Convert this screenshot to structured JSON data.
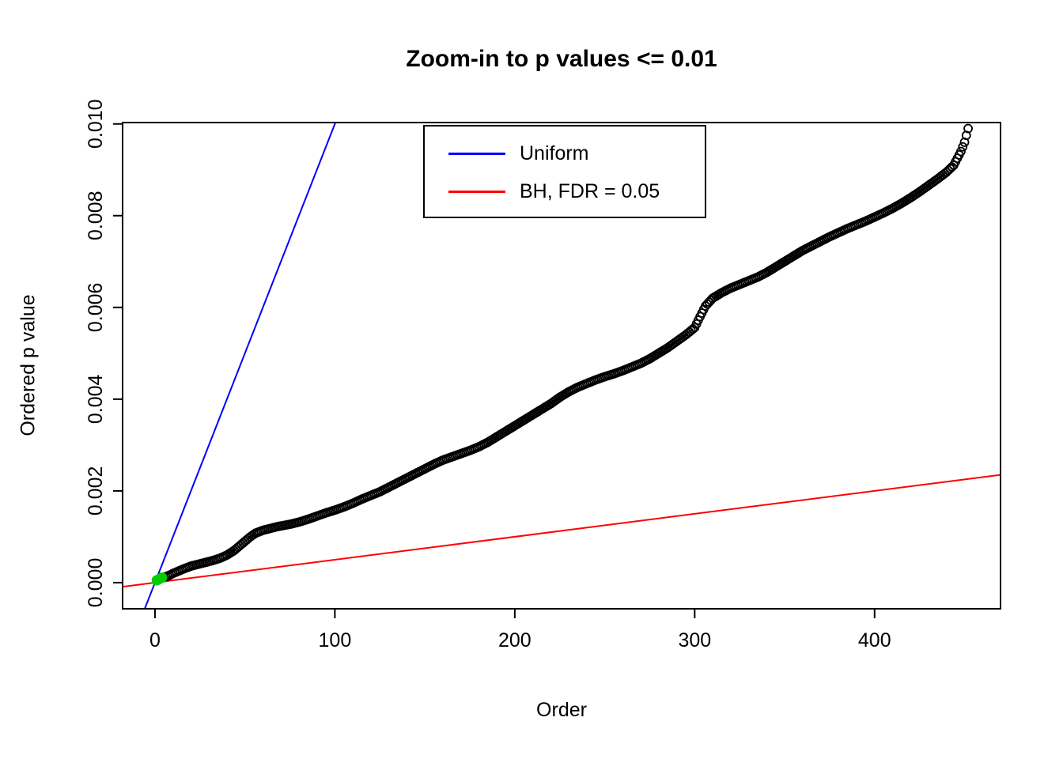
{
  "chart_data": {
    "type": "scatter",
    "title": "Zoom-in to p values <= 0.01",
    "xlabel": "Order",
    "ylabel": "Ordered p value",
    "xlim": [
      -18,
      470
    ],
    "ylim": [
      -0.00057,
      0.01003
    ],
    "grid": false,
    "x_ticks": {
      "values": [
        0,
        100,
        200,
        300,
        400
      ],
      "labels": [
        "0",
        "100",
        "200",
        "300",
        "400"
      ]
    },
    "y_ticks": {
      "values": [
        0,
        0.002,
        0.004,
        0.006,
        0.008,
        0.01
      ],
      "labels": [
        "0.000",
        "0.002",
        "0.004",
        "0.006",
        "0.008",
        "0.010"
      ]
    },
    "legend": {
      "position": "top-center-inside",
      "entries": [
        {
          "label": "Uniform",
          "color": "#0000FF"
        },
        {
          "label": "BH, FDR = 0.05",
          "color": "#FF0000"
        }
      ]
    },
    "series": [
      {
        "name": "ordered-p-values",
        "kind": "points",
        "marker": "open-circle",
        "color": "#000000",
        "n_points": 452,
        "x_is_rank": true,
        "curve_control_points": [
          [
            1,
            6e-05
          ],
          [
            2,
            8e-05
          ],
          [
            4,
            0.0001
          ],
          [
            6,
            0.00013
          ],
          [
            8,
            0.00016
          ],
          [
            10,
            0.0002
          ],
          [
            13,
            0.00025
          ],
          [
            16,
            0.0003
          ],
          [
            20,
            0.00036
          ],
          [
            24,
            0.0004
          ],
          [
            28,
            0.00044
          ],
          [
            32,
            0.00048
          ],
          [
            36,
            0.00053
          ],
          [
            40,
            0.0006
          ],
          [
            44,
            0.0007
          ],
          [
            47,
            0.0008
          ],
          [
            50,
            0.0009
          ],
          [
            53,
            0.001
          ],
          [
            56,
            0.00108
          ],
          [
            60,
            0.00114
          ],
          [
            64,
            0.00118
          ],
          [
            68,
            0.00122
          ],
          [
            72,
            0.00125
          ],
          [
            76,
            0.00128
          ],
          [
            80,
            0.00132
          ],
          [
            85,
            0.00138
          ],
          [
            90,
            0.00145
          ],
          [
            95,
            0.00152
          ],
          [
            100,
            0.00158
          ],
          [
            105,
            0.00165
          ],
          [
            110,
            0.00173
          ],
          [
            115,
            0.00182
          ],
          [
            120,
            0.0019
          ],
          [
            125,
            0.00198
          ],
          [
            130,
            0.00208
          ],
          [
            135,
            0.00218
          ],
          [
            140,
            0.00228
          ],
          [
            145,
            0.00238
          ],
          [
            150,
            0.00248
          ],
          [
            155,
            0.00258
          ],
          [
            160,
            0.00267
          ],
          [
            165,
            0.00274
          ],
          [
            170,
            0.00281
          ],
          [
            175,
            0.00288
          ],
          [
            180,
            0.00296
          ],
          [
            185,
            0.00306
          ],
          [
            190,
            0.00318
          ],
          [
            195,
            0.0033
          ],
          [
            200,
            0.00342
          ],
          [
            205,
            0.00354
          ],
          [
            210,
            0.00366
          ],
          [
            215,
            0.00378
          ],
          [
            220,
            0.0039
          ],
          [
            225,
            0.00404
          ],
          [
            230,
            0.00416
          ],
          [
            235,
            0.00426
          ],
          [
            240,
            0.00434
          ],
          [
            245,
            0.00442
          ],
          [
            250,
            0.00449
          ],
          [
            255,
            0.00455
          ],
          [
            260,
            0.00462
          ],
          [
            265,
            0.0047
          ],
          [
            270,
            0.00478
          ],
          [
            275,
            0.00488
          ],
          [
            280,
            0.005
          ],
          [
            285,
            0.00512
          ],
          [
            290,
            0.00526
          ],
          [
            295,
            0.0054
          ],
          [
            300,
            0.00556
          ],
          [
            303,
            0.0058
          ],
          [
            306,
            0.00603
          ],
          [
            310,
            0.0062
          ],
          [
            315,
            0.00632
          ],
          [
            320,
            0.00642
          ],
          [
            325,
            0.0065
          ],
          [
            330,
            0.00658
          ],
          [
            335,
            0.00666
          ],
          [
            340,
            0.00676
          ],
          [
            345,
            0.00688
          ],
          [
            350,
            0.007
          ],
          [
            355,
            0.00712
          ],
          [
            360,
            0.00724
          ],
          [
            365,
            0.00734
          ],
          [
            370,
            0.00744
          ],
          [
            375,
            0.00754
          ],
          [
            380,
            0.00763
          ],
          [
            385,
            0.00772
          ],
          [
            390,
            0.0078
          ],
          [
            395,
            0.00788
          ],
          [
            400,
            0.00797
          ],
          [
            405,
            0.00806
          ],
          [
            410,
            0.00816
          ],
          [
            415,
            0.00827
          ],
          [
            420,
            0.00839
          ],
          [
            425,
            0.00852
          ],
          [
            430,
            0.00866
          ],
          [
            435,
            0.0088
          ],
          [
            440,
            0.00895
          ],
          [
            444,
            0.0091
          ],
          [
            448,
            0.0094
          ],
          [
            450,
            0.0096
          ],
          [
            452,
            0.0099
          ]
        ]
      },
      {
        "name": "bh-significant",
        "kind": "points",
        "marker": "filled-circle",
        "color": "#00CD00",
        "points": [
          [
            1,
            5e-05
          ],
          [
            2,
            7e-05
          ],
          [
            3,
            9e-05
          ],
          [
            4,
            0.00011
          ]
        ]
      },
      {
        "name": "Uniform",
        "kind": "abline",
        "color": "#0000FF",
        "slope": 0.0001,
        "intercept": 0
      },
      {
        "name": "BH, FDR = 0.05",
        "kind": "abline",
        "color": "#FF0000",
        "slope": 5e-06,
        "intercept": 0
      }
    ]
  }
}
